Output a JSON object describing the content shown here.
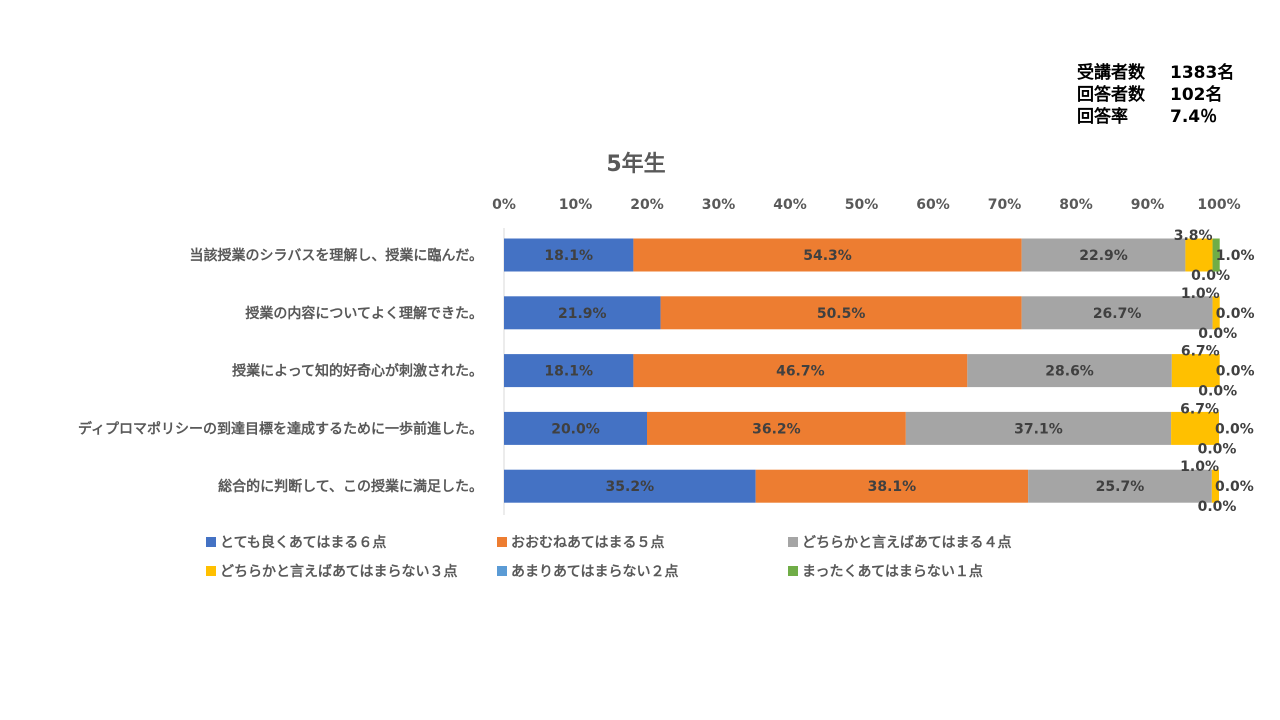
{
  "stats": {
    "rows": [
      {
        "label": "受講者数",
        "value": "1383名"
      },
      {
        "label": "回答者数",
        "value": "102名"
      },
      {
        "label": "回答率",
        "value": "7.4％"
      }
    ]
  },
  "chart_data": {
    "type": "bar",
    "orientation": "horizontal",
    "stacked": true,
    "title": "5年生",
    "xlim": [
      0,
      100
    ],
    "x_ticks": [
      "0%",
      "10%",
      "20%",
      "30%",
      "40%",
      "50%",
      "60%",
      "70%",
      "80%",
      "90%",
      "100%"
    ],
    "categories": [
      "当該授業のシラバスを理解し、授業に臨んだ。",
      "授業の内容についてよく理解できた。",
      "授業によって知的好奇心が刺激された。",
      "ディプロマポリシーの到達目標を達成するために一歩前進した。",
      "総合的に判断して、この授業に満足した。"
    ],
    "series": [
      {
        "name": "とても良くあてはまる６点",
        "color": "#4472C4",
        "values": [
          18.1,
          21.9,
          18.1,
          20.0,
          35.2
        ]
      },
      {
        "name": "おおむねあてはまる５点",
        "color": "#ED7D31",
        "values": [
          54.3,
          50.5,
          46.7,
          36.2,
          38.1
        ]
      },
      {
        "name": "どちらかと言えばあてはまる４点",
        "color": "#A5A5A5",
        "values": [
          22.9,
          26.7,
          28.6,
          37.1,
          25.7
        ]
      },
      {
        "name": "どちらかと言えばあてはまらない３点",
        "color": "#FFC000",
        "values": [
          3.8,
          1.0,
          6.7,
          6.7,
          1.0
        ]
      },
      {
        "name": "あまりあてはまらない２点",
        "color": "#5B9BD5",
        "values": [
          0.0,
          0.0,
          0.0,
          0.0,
          0.0
        ]
      },
      {
        "name": "まったくあてはまらない１点",
        "color": "#70AD47",
        "values": [
          1.0,
          0.0,
          0.0,
          0.0,
          0.0
        ]
      }
    ],
    "data_labels": [
      [
        "18.1%",
        "54.3%",
        "22.9%",
        "3.8%",
        "0.0%",
        "1.0%"
      ],
      [
        "21.9%",
        "50.5%",
        "26.7%",
        "1.0%",
        "0.0%",
        "0.0%"
      ],
      [
        "18.1%",
        "46.7%",
        "28.6%",
        "6.7%",
        "0.0%",
        "0.0%"
      ],
      [
        "20.0%",
        "36.2%",
        "37.1%",
        "6.7%",
        "0.0%",
        "0.0%"
      ],
      [
        "35.2%",
        "38.1%",
        "25.7%",
        "1.0%",
        "0.0%",
        "0.0%"
      ]
    ],
    "legend_position": "bottom",
    "grid": false
  }
}
